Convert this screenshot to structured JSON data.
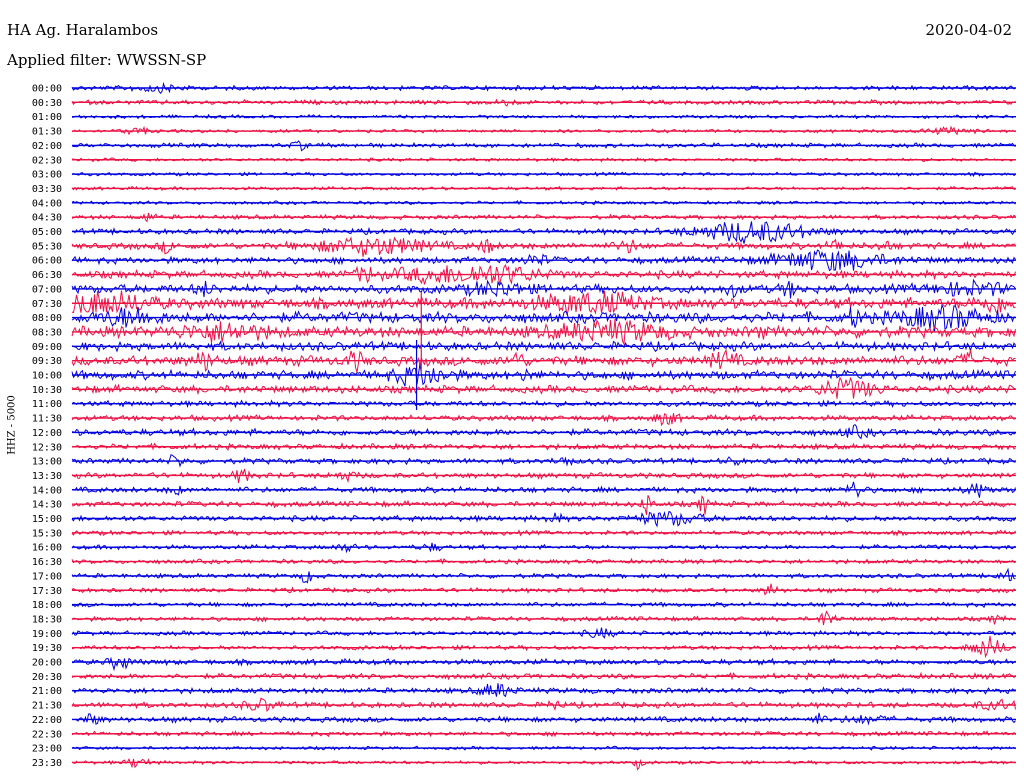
{
  "header": {
    "station": "HA Ag. Haralambos",
    "date": "2020-04-02",
    "filter": "Applied filter: WWSSN-SP"
  },
  "chart_data": {
    "type": "line",
    "title": "HA Ag. Haralambos",
    "date": "2020-04-02",
    "subtitle": "Applied filter: WWSSN-SP",
    "ylabel": "HHZ - 5000",
    "xlabel": "",
    "row_labels": [
      "00:00",
      "00:30",
      "01:00",
      "01:30",
      "02:00",
      "02:30",
      "03:00",
      "03:30",
      "04:00",
      "04:30",
      "05:00",
      "05:30",
      "06:00",
      "06:30",
      "07:00",
      "07:30",
      "08:00",
      "08:30",
      "09:00",
      "09:30",
      "10:00",
      "10:30",
      "11:00",
      "11:30",
      "12:00",
      "12:30",
      "13:00",
      "13:30",
      "14:00",
      "14:30",
      "15:00",
      "15:30",
      "16:00",
      "16:30",
      "17:00",
      "17:30",
      "18:00",
      "18:30",
      "19:00",
      "19:30",
      "20:00",
      "20:30",
      "21:00",
      "21:30",
      "22:00",
      "22:30",
      "23:00",
      "23:30"
    ],
    "series_colors": [
      "#0000e0",
      "#ee1144"
    ],
    "baseline_noise": [
      2,
      2,
      1.5,
      1.5,
      2,
      1.5,
      1.5,
      1.5,
      1.5,
      2,
      2.5,
      3,
      3,
      3.5,
      4,
      5,
      5,
      5,
      4,
      4.5,
      4,
      3.5,
      2.5,
      2.5,
      3,
      2.5,
      2.5,
      2.5,
      2.5,
      2.5,
      2.5,
      2,
      2,
      2,
      2,
      2,
      2,
      2,
      2,
      2,
      2.5,
      2.5,
      2.5,
      2.5,
      2.5,
      2,
      1.5,
      1.5
    ],
    "events": [
      {
        "row": 0,
        "x": 0.09,
        "amp": 3,
        "width": 0.02
      },
      {
        "row": 1,
        "x": 0.46,
        "amp": 4,
        "width": 0.005
      },
      {
        "row": 3,
        "x": 0.07,
        "amp": 3,
        "width": 0.01
      },
      {
        "row": 3,
        "x": 0.93,
        "amp": 2.5,
        "width": 0.02
      },
      {
        "row": 4,
        "x": 0.24,
        "amp": 4,
        "width": 0.005
      },
      {
        "row": 9,
        "x": 0.08,
        "amp": 4,
        "width": 0.005
      },
      {
        "row": 10,
        "x": 0.72,
        "amp": 10,
        "width": 0.04
      },
      {
        "row": 11,
        "x": 0.1,
        "amp": 5,
        "width": 0.005
      },
      {
        "row": 11,
        "x": 0.32,
        "amp": 8,
        "width": 0.04
      },
      {
        "row": 11,
        "x": 0.44,
        "amp": 6,
        "width": 0.005
      },
      {
        "row": 11,
        "x": 0.59,
        "amp": 5,
        "width": 0.008
      },
      {
        "row": 11,
        "x": 0.81,
        "amp": 5,
        "width": 0.005
      },
      {
        "row": 11,
        "x": 0.86,
        "amp": 4,
        "width": 0.005
      },
      {
        "row": 12,
        "x": 0.8,
        "amp": 9,
        "width": 0.04
      },
      {
        "row": 12,
        "x": 0.49,
        "amp": 4,
        "width": 0.01
      },
      {
        "row": 13,
        "x": 0.31,
        "amp": 6,
        "width": 0.008
      },
      {
        "row": 13,
        "x": 0.38,
        "amp": 6,
        "width": 0.03
      },
      {
        "row": 13,
        "x": 0.45,
        "amp": 8,
        "width": 0.03
      },
      {
        "row": 14,
        "x": 0.14,
        "amp": 6,
        "width": 0.006
      },
      {
        "row": 14,
        "x": 0.45,
        "amp": 6,
        "width": 0.02
      },
      {
        "row": 14,
        "x": 0.7,
        "amp": 6,
        "width": 0.005
      },
      {
        "row": 14,
        "x": 0.76,
        "amp": 6,
        "width": 0.006
      },
      {
        "row": 14,
        "x": 0.95,
        "amp": 5,
        "width": 0.03
      },
      {
        "row": 15,
        "x": 0.03,
        "amp": 9,
        "width": 0.035
      },
      {
        "row": 15,
        "x": 0.55,
        "amp": 8,
        "width": 0.04
      },
      {
        "row": 15,
        "x": 0.98,
        "amp": 7,
        "width": 0.015
      },
      {
        "row": 16,
        "x": 0.06,
        "amp": 7,
        "width": 0.02
      },
      {
        "row": 16,
        "x": 0.83,
        "amp": 8,
        "width": 0.005
      },
      {
        "row": 16,
        "x": 0.92,
        "amp": 9,
        "width": 0.03
      },
      {
        "row": 17,
        "x": 0.16,
        "amp": 7,
        "width": 0.03
      },
      {
        "row": 17,
        "x": 0.57,
        "amp": 8,
        "width": 0.04
      },
      {
        "row": 17,
        "x": 0.73,
        "amp": 4,
        "width": 0.005
      },
      {
        "row": 19,
        "x": 0.14,
        "amp": 7,
        "width": 0.008
      },
      {
        "row": 19,
        "x": 0.3,
        "amp": 8,
        "width": 0.006
      },
      {
        "row": 19,
        "x": 0.47,
        "amp": 6,
        "width": 0.006
      },
      {
        "row": 19,
        "x": 0.69,
        "amp": 7,
        "width": 0.01
      },
      {
        "row": 19,
        "x": 0.95,
        "amp": 6,
        "width": 0.006
      },
      {
        "row": 20,
        "x": 0.37,
        "amp": 9,
        "width": 0.02
      },
      {
        "row": 20,
        "x": 0.48,
        "amp": 4,
        "width": 0.005
      },
      {
        "row": 21,
        "x": 0.82,
        "amp": 9,
        "width": 0.02
      },
      {
        "row": 23,
        "x": 0.63,
        "amp": 6,
        "width": 0.008
      },
      {
        "row": 24,
        "x": 0.83,
        "amp": 4,
        "width": 0.01
      },
      {
        "row": 26,
        "x": 0.11,
        "amp": 5,
        "width": 0.006
      },
      {
        "row": 26,
        "x": 0.52,
        "amp": 5,
        "width": 0.005
      },
      {
        "row": 26,
        "x": 0.7,
        "amp": 4,
        "width": 0.004
      },
      {
        "row": 27,
        "x": 0.18,
        "amp": 6,
        "width": 0.006
      },
      {
        "row": 27,
        "x": 0.29,
        "amp": 4,
        "width": 0.008
      },
      {
        "row": 28,
        "x": 0.11,
        "amp": 4,
        "width": 0.005
      },
      {
        "row": 28,
        "x": 0.83,
        "amp": 8,
        "width": 0.006
      },
      {
        "row": 28,
        "x": 0.96,
        "amp": 6,
        "width": 0.008
      },
      {
        "row": 29,
        "x": 0.61,
        "amp": 10,
        "width": 0.004
      },
      {
        "row": 29,
        "x": 0.67,
        "amp": 9,
        "width": 0.004
      },
      {
        "row": 30,
        "x": 0.51,
        "amp": 5,
        "width": 0.005
      },
      {
        "row": 30,
        "x": 0.63,
        "amp": 6,
        "width": 0.025
      },
      {
        "row": 32,
        "x": 0.29,
        "amp": 3,
        "width": 0.008
      },
      {
        "row": 32,
        "x": 0.38,
        "amp": 3,
        "width": 0.008
      },
      {
        "row": 34,
        "x": 0.25,
        "amp": 7,
        "width": 0.005
      },
      {
        "row": 34,
        "x": 0.99,
        "amp": 5,
        "width": 0.008
      },
      {
        "row": 35,
        "x": 0.74,
        "amp": 8,
        "width": 0.004
      },
      {
        "row": 37,
        "x": 0.8,
        "amp": 10,
        "width": 0.005
      },
      {
        "row": 37,
        "x": 0.98,
        "amp": 5,
        "width": 0.004
      },
      {
        "row": 38,
        "x": 0.56,
        "amp": 4,
        "width": 0.01
      },
      {
        "row": 39,
        "x": 0.97,
        "amp": 10,
        "width": 0.012
      },
      {
        "row": 40,
        "x": 0.05,
        "amp": 6,
        "width": 0.008
      },
      {
        "row": 42,
        "x": 0.45,
        "amp": 6,
        "width": 0.012
      },
      {
        "row": 43,
        "x": 0.2,
        "amp": 5,
        "width": 0.012
      },
      {
        "row": 43,
        "x": 0.51,
        "amp": 6,
        "width": 0.004
      },
      {
        "row": 43,
        "x": 0.98,
        "amp": 4,
        "width": 0.015
      },
      {
        "row": 44,
        "x": 0.02,
        "amp": 5,
        "width": 0.006
      },
      {
        "row": 44,
        "x": 0.79,
        "amp": 5,
        "width": 0.004
      },
      {
        "row": 44,
        "x": 0.84,
        "amp": 3,
        "width": 0.015
      },
      {
        "row": 47,
        "x": 0.07,
        "amp": 5,
        "width": 0.008
      },
      {
        "row": 47,
        "x": 0.6,
        "amp": 6,
        "width": 0.003
      }
    ],
    "spikes": [
      {
        "row": 17,
        "x": 0.37,
        "amp": 40
      },
      {
        "row": 20,
        "x": 0.365,
        "amp": 35
      }
    ]
  }
}
